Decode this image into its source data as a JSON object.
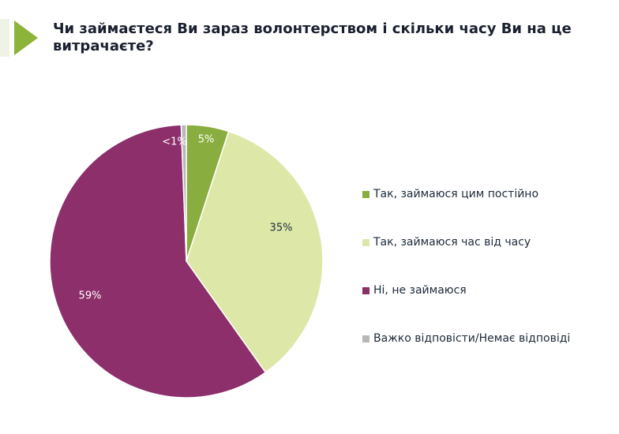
{
  "title": "Чи займаєтеся Ви зараз волонтерством і скільки часу Ви на це витрачаєте?",
  "chart_data": {
    "type": "pie",
    "title": "Чи займаєтеся Ви зараз волонтерством і скільки часу Ви на це витрачаєте?",
    "legend_position": "right",
    "slices": [
      {
        "name": "Так, займаюся цим постійно",
        "value": 5,
        "label": "5%",
        "color": "#8aad3f",
        "label_color": "#ffffff"
      },
      {
        "name": "Так, займаюся час від часу",
        "value": 35,
        "label": "35%",
        "color": "#dde8a8",
        "label_color": "#1e2a3a"
      },
      {
        "name": "Ні, не займаюся",
        "value": 59,
        "label": "59%",
        "color": "#8c2f6a",
        "label_color": "#ffffff"
      },
      {
        "name": "Важко відповісти/Немає відповіді",
        "value": 0.6,
        "label": "<1%",
        "color": "#b8b8b8",
        "label_color": "#ffffff"
      }
    ]
  }
}
